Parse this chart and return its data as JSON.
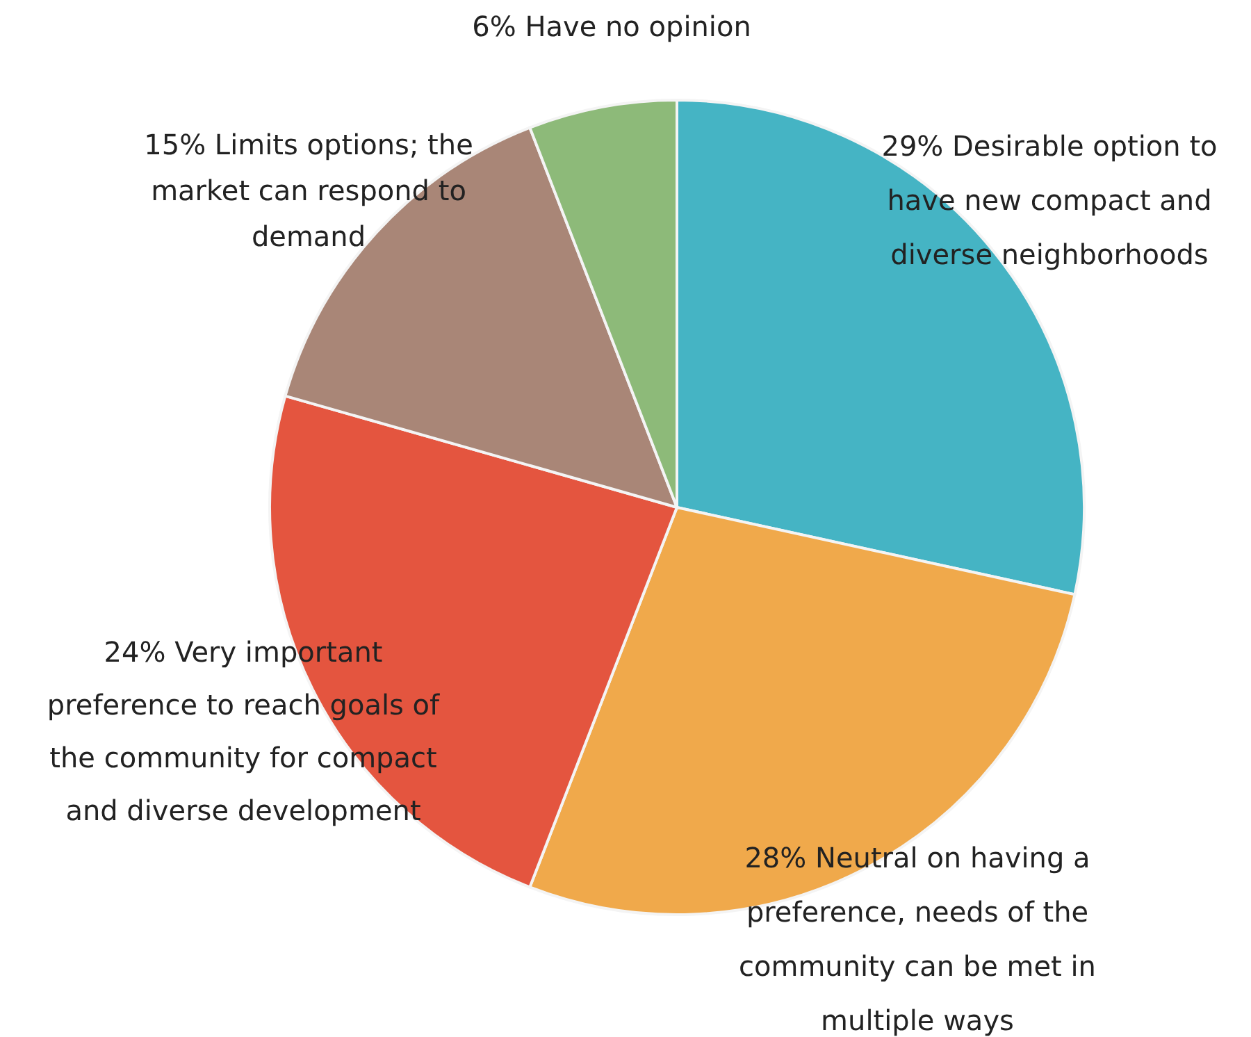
{
  "chart_data": {
    "type": "pie",
    "categories": [
      "29% Desirable option to have new compact and diverse neighborhoods",
      "28% Neutral on having a preference, needs of the community can be met in multiple ways",
      "24% Very important preference to reach goals of the community for compact and diverse development",
      "15% Limits options; the market can respond to demand",
      "6% Have no opinion"
    ],
    "values": [
      29,
      28,
      24,
      15,
      6
    ],
    "colors": [
      "#45b4c4",
      "#f0a94b",
      "#e4553f",
      "#a98677",
      "#8dba79"
    ]
  }
}
